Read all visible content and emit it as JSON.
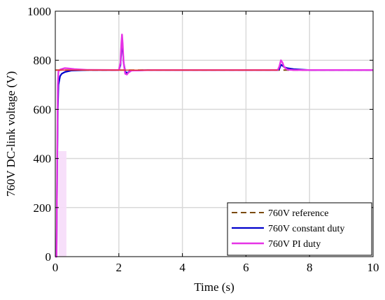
{
  "chart_data": {
    "type": "line",
    "xlabel": "Time (s)",
    "ylabel": "760V DC-link voltage (V)",
    "xlim": [
      0,
      10
    ],
    "ylim": [
      0,
      1000
    ],
    "xticks": [
      "0",
      "2",
      "4",
      "6",
      "8",
      "10"
    ],
    "yticks": [
      "0",
      "200",
      "400",
      "600",
      "800",
      "1000"
    ],
    "grid": true,
    "legend_position": "bottom-right",
    "series": [
      {
        "name": "760V reference",
        "style": "dashed",
        "color": "#7a4a0a",
        "x": [
          0.02,
          10
        ],
        "y": [
          760,
          760
        ]
      },
      {
        "name": "760V constant duty",
        "style": "solid",
        "color": "#0000cc",
        "x": [
          0,
          0.04,
          0.06,
          0.08,
          0.1,
          0.15,
          0.2,
          0.3,
          0.5,
          1.0,
          2.0,
          2.05,
          2.08,
          2.1,
          2.12,
          2.15,
          2.2,
          2.25,
          2.3,
          2.4,
          3.0,
          7.0,
          7.05,
          7.1,
          7.15,
          7.2,
          7.3,
          7.5,
          8.0,
          10.0
        ],
        "y": [
          0,
          0,
          350,
          600,
          700,
          735,
          745,
          752,
          758,
          760,
          760,
          780,
          840,
          880,
          850,
          790,
          755,
          748,
          752,
          758,
          760,
          760,
          765,
          782,
          778,
          772,
          768,
          764,
          760,
          760
        ]
      },
      {
        "name": "760V PI duty",
        "style": "solid",
        "color": "#e633e6",
        "x": [
          0,
          0.04,
          0.06,
          0.08,
          0.1,
          0.15,
          0.2,
          0.3,
          0.4,
          0.6,
          1.0,
          2.0,
          2.05,
          2.08,
          2.1,
          2.12,
          2.15,
          2.2,
          2.25,
          2.3,
          2.4,
          3.0,
          7.0,
          7.05,
          7.1,
          7.15,
          7.2,
          7.3,
          7.5,
          8.0,
          10.0
        ],
        "y": [
          0,
          0,
          400,
          700,
          755,
          762,
          764,
          768,
          767,
          764,
          761,
          760,
          790,
          870,
          905,
          870,
          790,
          745,
          742,
          750,
          758,
          760,
          760,
          775,
          800,
          790,
          772,
          762,
          760,
          760,
          760
        ]
      }
    ]
  },
  "colors": {
    "grid": "#d9d9d9",
    "axes": "#000000",
    "startup_shade": "#f6dcfa"
  }
}
